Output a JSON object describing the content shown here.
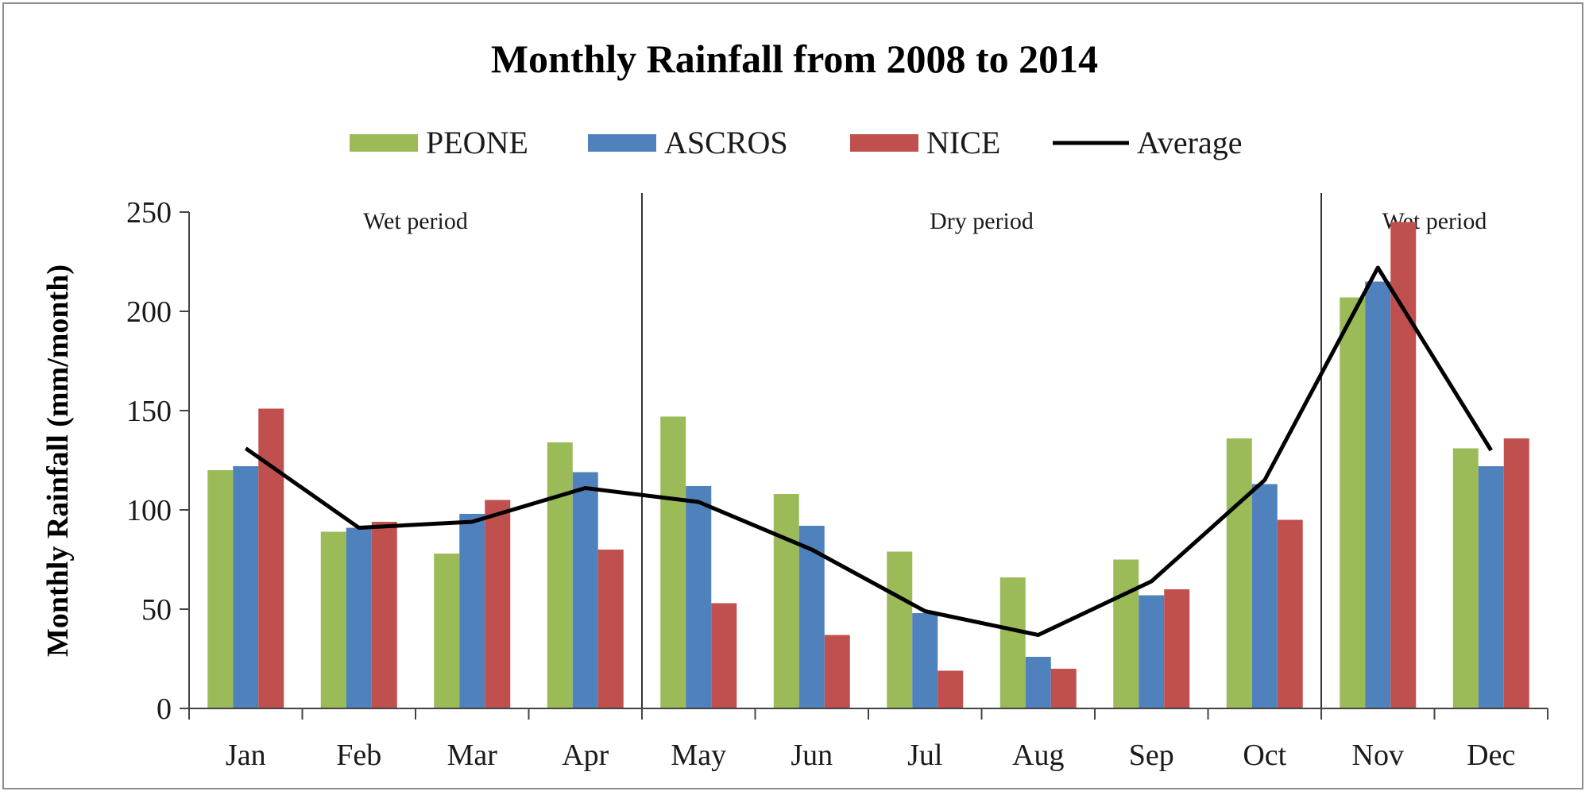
{
  "chart_data": {
    "type": "bar",
    "title": "Monthly Rainfall from 2008 to 2014",
    "xlabel": "",
    "ylabel": "Monthly Rainfall (mm/month)",
    "ylim": [
      0,
      250
    ],
    "yticks": [
      0,
      50,
      100,
      150,
      200,
      250
    ],
    "grid": false,
    "legend_position": "top",
    "categories": [
      "Jan",
      "Feb",
      "Mar",
      "Apr",
      "May",
      "Jun",
      "Jul",
      "Aug",
      "Sep",
      "Oct",
      "Nov",
      "Dec"
    ],
    "series": [
      {
        "name": "PEONE",
        "type": "bar",
        "color": "#9bbb59",
        "values": [
          120,
          89,
          78,
          134,
          147,
          108,
          79,
          66,
          75,
          136,
          207,
          131
        ]
      },
      {
        "name": "ASCROS",
        "type": "bar",
        "color": "#4f81bd",
        "values": [
          122,
          91,
          98,
          119,
          112,
          92,
          48,
          26,
          57,
          113,
          215,
          122
        ]
      },
      {
        "name": "NICE",
        "type": "bar",
        "color": "#c0504d",
        "values": [
          151,
          94,
          105,
          80,
          53,
          37,
          19,
          20,
          60,
          95,
          245,
          136
        ]
      },
      {
        "name": "Average",
        "type": "line",
        "color": "#000000",
        "values": [
          131,
          91,
          94,
          111,
          104,
          80,
          49,
          37,
          64,
          115,
          222,
          130
        ]
      }
    ],
    "annotations": [
      {
        "text": "Wet period",
        "span": [
          "Jan",
          "Apr"
        ]
      },
      {
        "text": "Dry period",
        "span": [
          "May",
          "Oct"
        ]
      },
      {
        "text": "Wet period",
        "span": [
          "Nov",
          "Dec"
        ]
      }
    ],
    "dividers_after": [
      "Apr",
      "Oct"
    ]
  }
}
